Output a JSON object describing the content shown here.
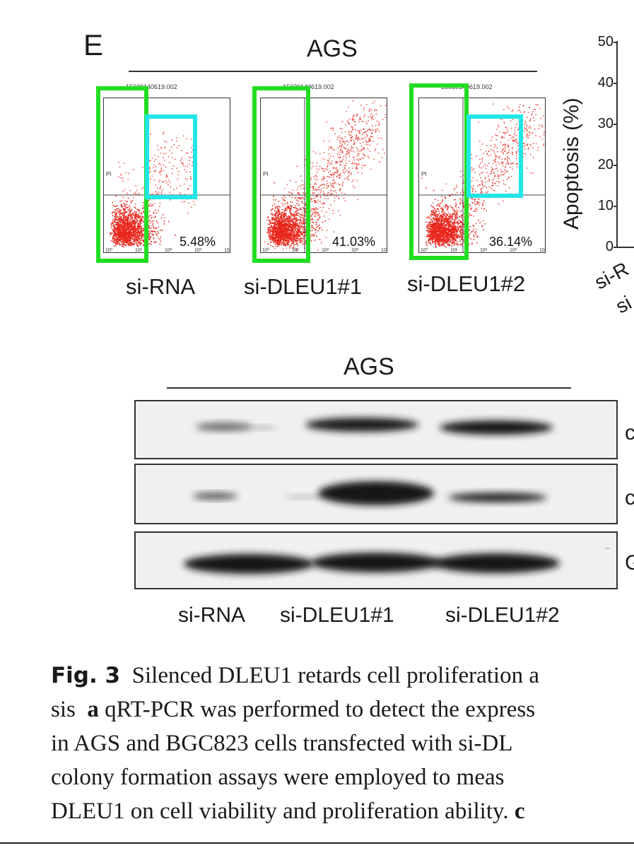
{
  "flow_panel": {
    "letter": "E",
    "cell_line": "AGS",
    "file_header": "15030140619.002",
    "y_axis_letter": "PI",
    "plots": [
      {
        "label": "si-RNA",
        "percent": "5.48%",
        "cyan_gate": true,
        "cloud": "low"
      },
      {
        "label": "si-DLEU1#1",
        "percent": "41.03%",
        "cyan_gate": false,
        "cloud": "high"
      },
      {
        "label": "si-DLEU1#2",
        "percent": "36.14%",
        "cyan_gate": true,
        "cloud": "mid"
      }
    ],
    "axis_ticks": [
      "10⁰",
      "10¹",
      "10²",
      "10³",
      "10⁴"
    ]
  },
  "apoptosis_chart": {
    "ylabel": "Apoptosis (%)",
    "yticks": [
      "50",
      "40",
      "30",
      "20",
      "10",
      "0"
    ],
    "ylim": [
      0,
      50
    ],
    "visible_x_fragments": [
      "si-R",
      "si"
    ]
  },
  "western_blot": {
    "cell_line": "AGS",
    "lanes": [
      "si-RNA",
      "si-DLEU1#1",
      "si-DLEU1#2"
    ],
    "band_labels_fragments": [
      "c",
      "c",
      "G"
    ]
  },
  "caption": {
    "fig_no": "Fig. 3",
    "lines": [
      "Silenced DLEU1 retards cell proliferation a",
      "qRT-PCR was performed to detect the express",
      "in AGS and BGC823 cells transfected with si-DL",
      "colony formation assays were employed to meas",
      "DLEU1 on cell viability and proliferation ability."
    ],
    "line2_prefix": "sis",
    "line2_bold": "a",
    "line5_bold_tail": "c"
  },
  "colors": {
    "gate_green": "#22dd22",
    "gate_cyan": "#22e6e6",
    "dots_red": "#e8261c"
  }
}
